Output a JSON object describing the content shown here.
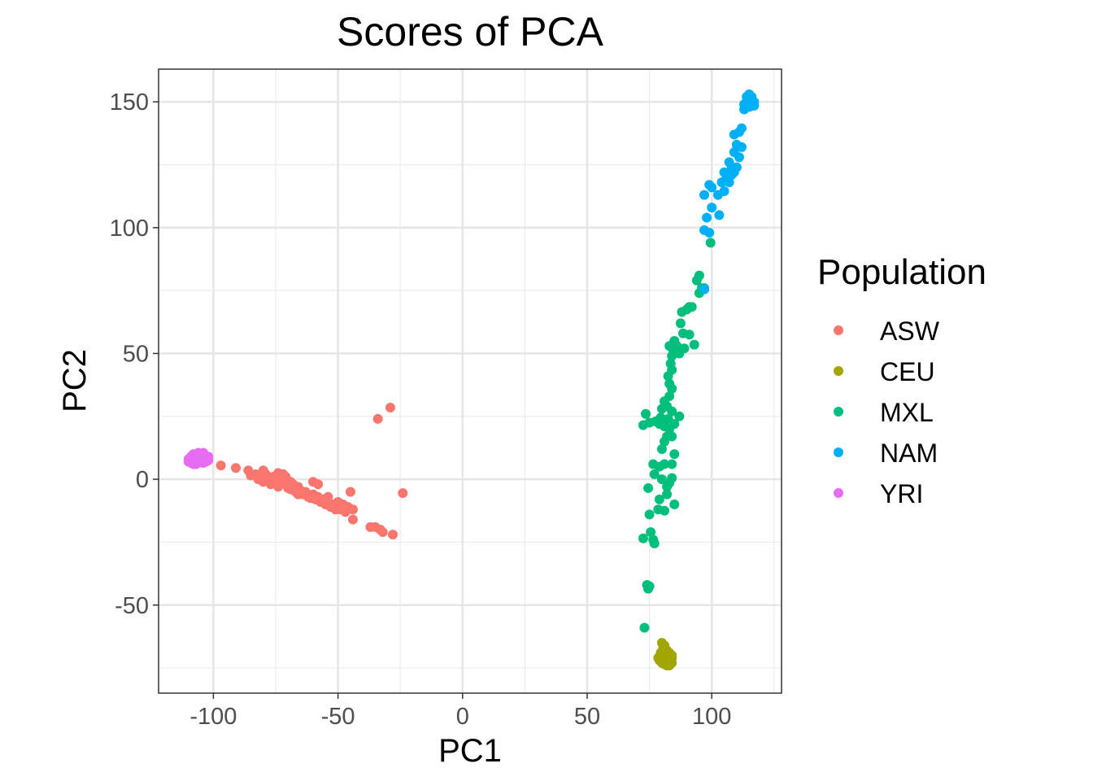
{
  "chart_data": {
    "type": "scatter",
    "title": "Scores of PCA",
    "xlabel": "PC1",
    "ylabel": "PC2",
    "xlim": [
      -122,
      128
    ],
    "ylim": [
      -85,
      163
    ],
    "xticks": [
      -100,
      -50,
      0,
      50,
      100
    ],
    "xtick_labels": [
      "-100",
      "-50",
      "0",
      "50",
      "100"
    ],
    "yticks": [
      -50,
      0,
      50,
      100,
      150
    ],
    "ytick_labels": [
      "-50",
      "0",
      "50",
      "100",
      "150"
    ],
    "grid": true,
    "legend": {
      "title": "Population",
      "placement": "right"
    },
    "series": [
      {
        "name": "ASW",
        "color": "#F8766D",
        "points": [
          [
            -97,
            5.5
          ],
          [
            -91,
            4.5
          ],
          [
            -86,
            3.5
          ],
          [
            -85,
            1.5
          ],
          [
            -83,
            2
          ],
          [
            -82,
            0
          ],
          [
            -81,
            1
          ],
          [
            -80,
            3.5
          ],
          [
            -80,
            -1
          ],
          [
            -79,
            2
          ],
          [
            -78,
            0
          ],
          [
            -77,
            -2
          ],
          [
            -76,
            1
          ],
          [
            -75,
            -1
          ],
          [
            -74,
            2.5
          ],
          [
            -74,
            -3
          ],
          [
            -73,
            0.5
          ],
          [
            -73,
            -1.5
          ],
          [
            -72,
            2
          ],
          [
            -71,
            -2
          ],
          [
            -71,
            1
          ],
          [
            -70,
            -3.5
          ],
          [
            -69,
            -1
          ],
          [
            -69,
            -4
          ],
          [
            -68,
            -2
          ],
          [
            -67,
            -5
          ],
          [
            -66,
            -3
          ],
          [
            -66,
            -6
          ],
          [
            -65,
            -4.5
          ],
          [
            -64,
            -6
          ],
          [
            -63,
            -5
          ],
          [
            -62,
            -7
          ],
          [
            -61,
            -7.5
          ],
          [
            -60,
            -6
          ],
          [
            -60,
            -1
          ],
          [
            -59,
            -8
          ],
          [
            -58,
            -7
          ],
          [
            -58,
            -2
          ],
          [
            -57,
            -9
          ],
          [
            -56,
            -8
          ],
          [
            -55,
            -10
          ],
          [
            -54,
            -9
          ],
          [
            -54,
            -7
          ],
          [
            -53,
            -11
          ],
          [
            -52,
            -10
          ],
          [
            -51,
            -12
          ],
          [
            -50,
            -9
          ],
          [
            -50,
            -11
          ],
          [
            -49,
            -12
          ],
          [
            -48,
            -10
          ],
          [
            -47,
            -13
          ],
          [
            -46,
            -11
          ],
          [
            -45,
            -5
          ],
          [
            -44,
            -16
          ],
          [
            -44,
            -12
          ],
          [
            -37,
            -19
          ],
          [
            -35,
            -19
          ],
          [
            -33,
            -20
          ],
          [
            -32,
            -21
          ],
          [
            -28,
            -22
          ],
          [
            -24,
            -5.5
          ],
          [
            -34,
            24
          ],
          [
            -29,
            28.5
          ]
        ]
      },
      {
        "name": "CEU",
        "color": "#A3A500",
        "points": [
          [
            80,
            -65
          ],
          [
            80.5,
            -67
          ],
          [
            81,
            -66
          ],
          [
            82,
            -68
          ],
          [
            79.5,
            -69
          ],
          [
            80,
            -70
          ],
          [
            81,
            -70
          ],
          [
            82,
            -70
          ],
          [
            83,
            -69
          ],
          [
            84,
            -70
          ],
          [
            78.5,
            -71
          ],
          [
            79,
            -72
          ],
          [
            80,
            -72
          ],
          [
            81,
            -72
          ],
          [
            82,
            -72
          ],
          [
            83,
            -72
          ],
          [
            80,
            -73
          ],
          [
            81,
            -73.5
          ],
          [
            82,
            -74
          ],
          [
            83,
            -74
          ],
          [
            84,
            -73
          ],
          [
            79,
            -70.5
          ],
          [
            84,
            -71
          ]
        ]
      },
      {
        "name": "MXL",
        "color": "#00BF7D",
        "points": [
          [
            73,
            -59
          ],
          [
            74,
            -42
          ],
          [
            75,
            -42.5
          ],
          [
            74.5,
            -43.5
          ],
          [
            72.5,
            -23.5
          ],
          [
            75.5,
            -21
          ],
          [
            76.5,
            -24
          ],
          [
            77,
            -25.5
          ],
          [
            75,
            -14
          ],
          [
            78.5,
            -12
          ],
          [
            81,
            -12.5
          ],
          [
            85,
            -10
          ],
          [
            74.5,
            -3.5
          ],
          [
            79,
            -8
          ],
          [
            82,
            -6
          ],
          [
            80,
            0
          ],
          [
            77,
            2
          ],
          [
            79,
            5
          ],
          [
            81,
            6
          ],
          [
            84,
            0.5
          ],
          [
            84,
            6
          ],
          [
            76.5,
            6
          ],
          [
            82,
            -3
          ],
          [
            83,
            -1.5
          ],
          [
            85,
            10
          ],
          [
            80,
            12
          ],
          [
            81,
            15
          ],
          [
            82,
            17
          ],
          [
            84,
            17
          ],
          [
            83,
            20
          ],
          [
            79,
            22
          ],
          [
            81,
            21
          ],
          [
            85,
            22
          ],
          [
            72.5,
            21.5
          ],
          [
            73.5,
            26
          ],
          [
            75,
            22.5
          ],
          [
            77.5,
            23
          ],
          [
            79.5,
            24.5
          ],
          [
            82.5,
            24
          ],
          [
            87,
            25
          ],
          [
            80,
            28
          ],
          [
            82,
            29
          ],
          [
            84,
            27
          ],
          [
            81,
            31
          ],
          [
            83,
            33
          ],
          [
            84,
            36
          ],
          [
            83,
            38
          ],
          [
            82.5,
            41
          ],
          [
            84,
            43.5
          ],
          [
            83.5,
            46
          ],
          [
            84,
            49
          ],
          [
            84.5,
            51.5
          ],
          [
            86,
            53
          ],
          [
            83,
            53
          ],
          [
            85,
            55
          ],
          [
            87,
            50
          ],
          [
            89,
            52
          ],
          [
            88.5,
            58
          ],
          [
            91,
            57.5
          ],
          [
            93,
            53.5
          ],
          [
            87.5,
            62
          ],
          [
            88,
            66.5
          ],
          [
            90,
            67.5
          ],
          [
            91,
            68.5
          ],
          [
            92,
            68.5
          ],
          [
            95,
            74
          ],
          [
            96,
            76
          ],
          [
            97,
            76
          ],
          [
            94,
            79
          ],
          [
            95,
            81
          ],
          [
            99.5,
            94
          ]
        ]
      },
      {
        "name": "NAM",
        "color": "#00B0F6",
        "points": [
          [
            97,
            75.5
          ],
          [
            97,
            99
          ],
          [
            99,
            98
          ],
          [
            98,
            104
          ],
          [
            100,
            108
          ],
          [
            103,
            105
          ],
          [
            97,
            113
          ],
          [
            99,
            117
          ],
          [
            100,
            116
          ],
          [
            102.5,
            113
          ],
          [
            105,
            114.5
          ],
          [
            104,
            118
          ],
          [
            105,
            122
          ],
          [
            106,
            120
          ],
          [
            107,
            118
          ],
          [
            108,
            121
          ],
          [
            109,
            122
          ],
          [
            107,
            126
          ],
          [
            108,
            124
          ],
          [
            110,
            124
          ],
          [
            109,
            130
          ],
          [
            111,
            128
          ],
          [
            110,
            133
          ],
          [
            112,
            132
          ],
          [
            109,
            137
          ],
          [
            111,
            138
          ],
          [
            112,
            139.5
          ],
          [
            113,
            147
          ],
          [
            114,
            150
          ],
          [
            115,
            151
          ],
          [
            116,
            149
          ],
          [
            117,
            150
          ],
          [
            114,
            152
          ],
          [
            115,
            153
          ],
          [
            116,
            152
          ],
          [
            113,
            149
          ],
          [
            115,
            148
          ],
          [
            117,
            148.5
          ],
          [
            114,
            148
          ]
        ]
      },
      {
        "name": "YRI",
        "color": "#E76BF3",
        "points": [
          [
            -110,
            8
          ],
          [
            -110,
            7
          ],
          [
            -109,
            9
          ],
          [
            -109,
            6.5
          ],
          [
            -108,
            10
          ],
          [
            -108,
            8
          ],
          [
            -108,
            6
          ],
          [
            -107,
            9.5
          ],
          [
            -107,
            7
          ],
          [
            -106,
            8.5
          ],
          [
            -106,
            10.5
          ],
          [
            -106,
            6.5
          ],
          [
            -105,
            8
          ],
          [
            -105,
            10
          ],
          [
            -105,
            7
          ],
          [
            -104,
            9
          ],
          [
            -104,
            6.5
          ],
          [
            -103,
            8
          ],
          [
            -103,
            7
          ],
          [
            -102,
            9
          ],
          [
            -102,
            7.5
          ],
          [
            -107,
            6
          ],
          [
            -104,
            10.5
          ],
          [
            -109,
            8
          ]
        ]
      }
    ]
  }
}
